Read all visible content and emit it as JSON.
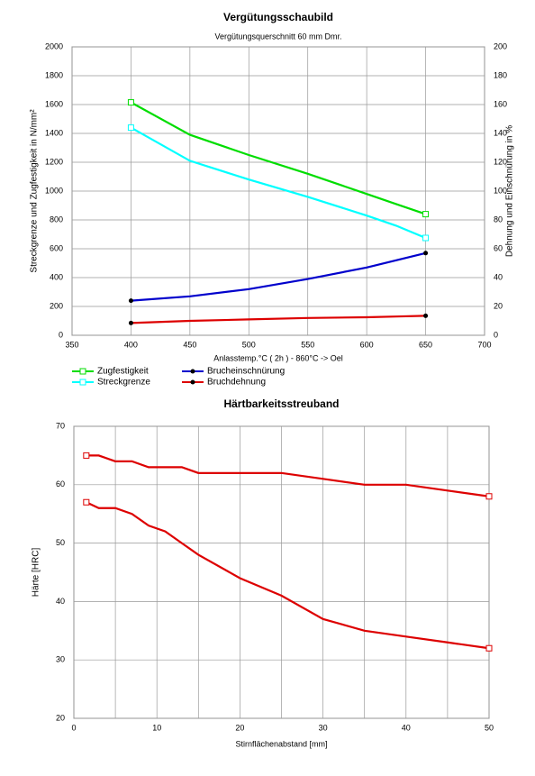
{
  "chart_data": [
    {
      "type": "line",
      "title": "Vergütungsschaubild",
      "subtitle": "Vergütungsquerschnitt 60 mm Dmr.",
      "x_label": "Anlasstemp.°C ( 2h ) - 860°C -> Oel",
      "y_label": "Streckgrenze und Zugfestigkeit in N/mm²",
      "y2_label": "Dehnung und Einschnürung in %",
      "x": [
        400,
        450,
        500,
        550,
        600,
        625,
        650
      ],
      "xlim": [
        350,
        700
      ],
      "xticks": [
        350,
        400,
        450,
        500,
        550,
        600,
        650,
        700
      ],
      "ylim": [
        0,
        2000
      ],
      "yticks": [
        0,
        200,
        400,
        600,
        800,
        1000,
        1200,
        1400,
        1600,
        1800,
        2000
      ],
      "y2lim": [
        0,
        200
      ],
      "y2ticks": [
        0,
        20,
        40,
        60,
        80,
        100,
        120,
        140,
        160,
        180,
        200
      ],
      "grid": true,
      "series": [
        {
          "name": "Zugfestigkeit",
          "color": "#00dd00",
          "marker": "square",
          "values": [
            1615,
            1390,
            1250,
            1120,
            980,
            910,
            840
          ]
        },
        {
          "name": "Streckgrenze",
          "color": "#00ffff",
          "marker": "square",
          "values": [
            1440,
            1210,
            1080,
            960,
            830,
            760,
            675
          ]
        },
        {
          "name": "Brucheinschnürung",
          "color": "#0000cc",
          "marker": "circle",
          "axis": "y2",
          "values": [
            24,
            27,
            32,
            39,
            47,
            52,
            57
          ]
        },
        {
          "name": "Bruchdehnung",
          "color": "#dd0000",
          "marker": "circle",
          "axis": "y2",
          "values": [
            8.5,
            10,
            11,
            12,
            12.5,
            13,
            13.5
          ]
        }
      ]
    },
    {
      "type": "line",
      "title": "Härtbarkeitsstreuband",
      "x_label": "Stirnflächenabstand [mm]",
      "y_label": "Härte [HRC]",
      "x": [
        1.5,
        3,
        5,
        7,
        9,
        11,
        13,
        15,
        20,
        25,
        30,
        35,
        40,
        45,
        50
      ],
      "xlim": [
        0,
        50
      ],
      "xticks": [
        0,
        10,
        20,
        30,
        40,
        50
      ],
      "ylim": [
        20,
        70
      ],
      "yticks": [
        20,
        30,
        40,
        50,
        60,
        70
      ],
      "grid": true,
      "series": [
        {
          "color": "#dd0000",
          "marker": "square",
          "values": [
            65,
            65,
            64,
            64,
            63,
            63,
            63,
            62,
            62,
            62,
            61,
            60,
            60,
            59,
            58
          ]
        },
        {
          "color": "#dd0000",
          "marker": "square",
          "values": [
            57,
            56,
            56,
            55,
            53,
            52,
            50,
            48,
            44,
            41,
            37,
            35,
            34,
            33,
            32
          ]
        }
      ]
    }
  ]
}
